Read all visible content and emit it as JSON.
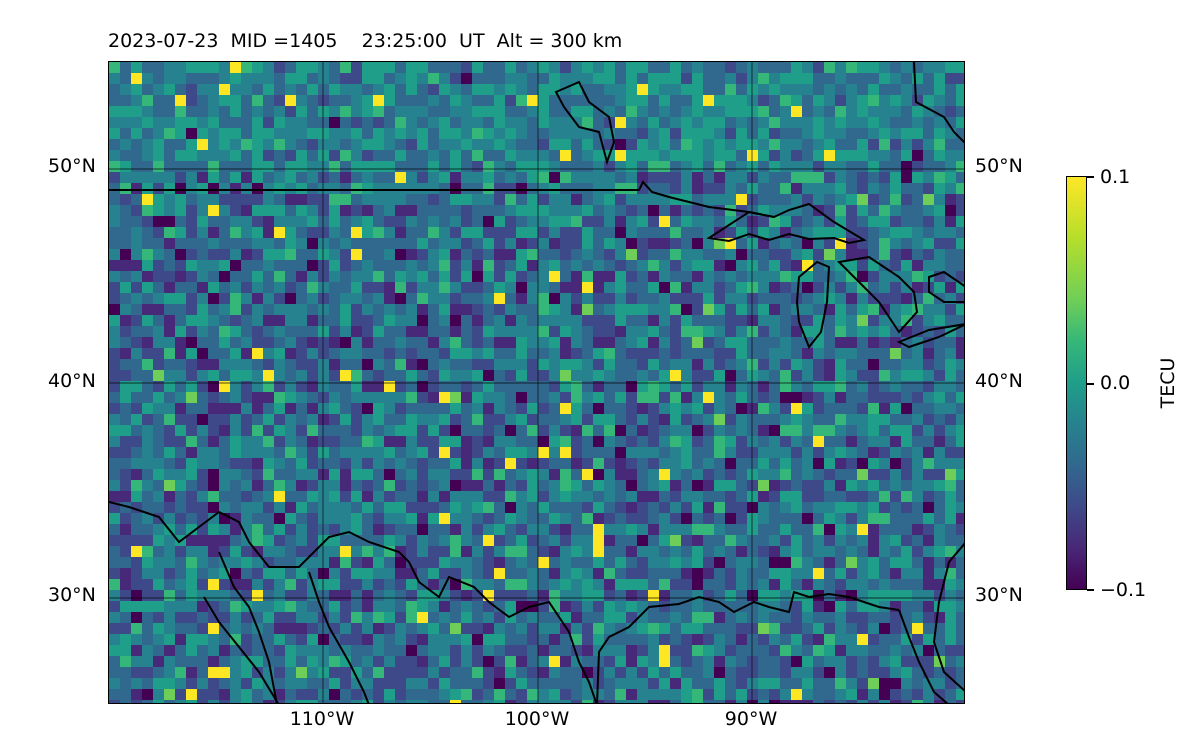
{
  "title": {
    "date": "2023-07-23",
    "mid": "MID =1405",
    "time": "23:25:00  UT",
    "alt": "Alt = 300 km"
  },
  "map": {
    "lat_labels": [
      "50°N",
      "40°N",
      "30°N"
    ],
    "lon_labels": [
      "110°W",
      "100°W",
      "90°W"
    ],
    "extent": {
      "lon": [
        -120,
        -80
      ],
      "lat": [
        25,
        55
      ]
    }
  },
  "colorbar": {
    "label": "TECU",
    "ticks": [
      "0.1",
      "0.0",
      "−0.1"
    ],
    "range": [
      -0.1,
      0.1
    ],
    "colormap": "viridis"
  }
}
